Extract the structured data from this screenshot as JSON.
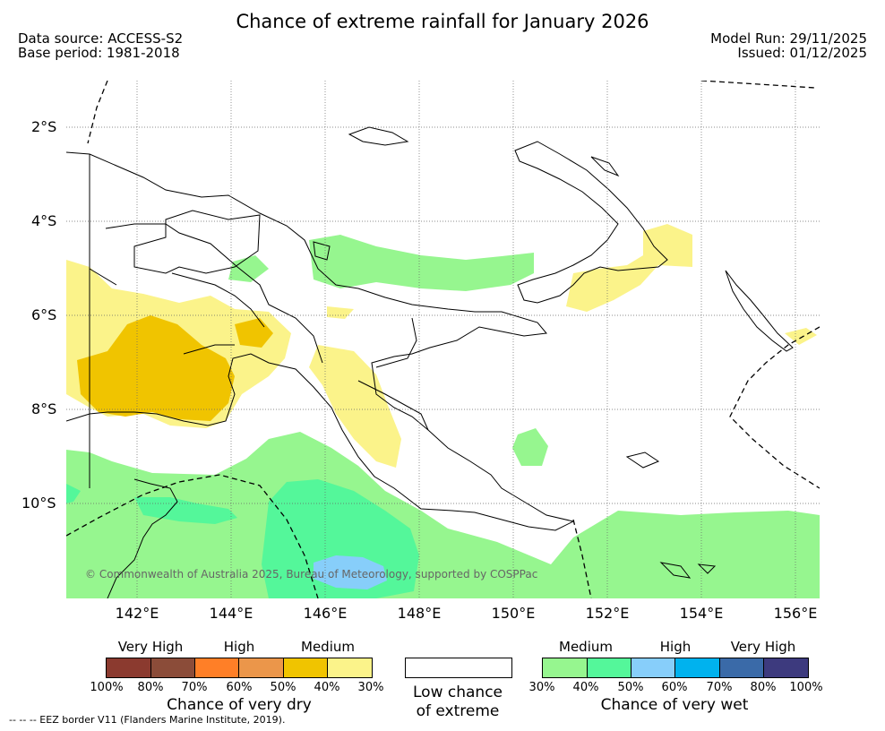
{
  "title": "Chance of extreme rainfall for January 2026",
  "data_source": "Data source: ACCESS-S2",
  "base_period": "Base period: 1981-2018",
  "model_run": "Model Run: 29/11/2025",
  "issued": "Issued: 01/12/2025",
  "lat_labels": [
    "2°S",
    "4°S",
    "6°S",
    "8°S",
    "10°S"
  ],
  "lon_labels": [
    "142°E",
    "144°E",
    "146°E",
    "148°E",
    "150°E",
    "152°E",
    "154°E",
    "156°E"
  ],
  "copyright": "© Commonwealth of Australia 2025, Bureau of Meteorology, supported by COSPPac",
  "legend": {
    "dry": {
      "groups": [
        "Very High",
        "High",
        "Medium"
      ],
      "colors": [
        "#8b3a2f",
        "#8b4c39",
        "#ff7f27",
        "#eb964a",
        "#f0c400",
        "#fbf38a"
      ],
      "ticks": [
        "100%",
        "80%",
        "70%",
        "60%",
        "50%",
        "40%",
        "30%"
      ],
      "caption": "Chance of very dry"
    },
    "neutral": {
      "line1": "Low chance",
      "line2": "of extreme",
      "color": "#ffffff"
    },
    "wet": {
      "groups": [
        "Medium",
        "High",
        "Very High"
      ],
      "colors": [
        "#96f68f",
        "#54f79a",
        "#87cefa",
        "#00b2ee",
        "#3a6aa8",
        "#3d3a7e"
      ],
      "ticks": [
        "30%",
        "40%",
        "50%",
        "60%",
        "70%",
        "80%",
        "100%"
      ],
      "caption": "Chance of very wet"
    }
  },
  "eez_note": "-- -- -- EEZ border V11 (Flanders Marine Institute, 2019)."
}
